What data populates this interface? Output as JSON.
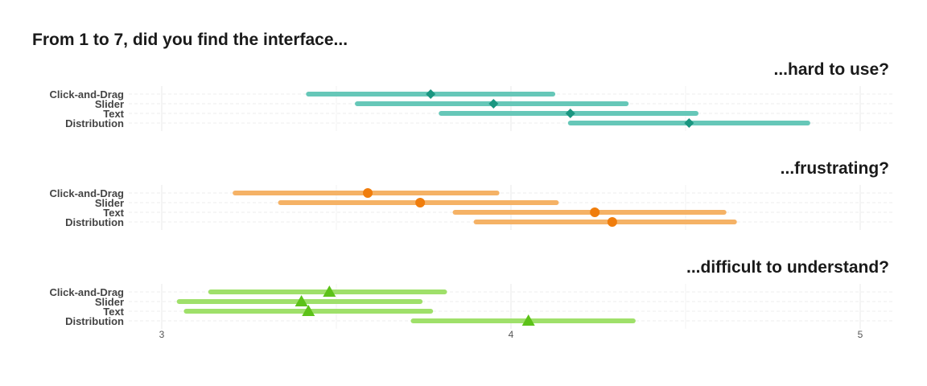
{
  "chart_data": {
    "type": "interval",
    "title": "From 1 to 7, did you find the interface...",
    "xlim": [
      2.8,
      5.1
    ],
    "x_ticks": [
      3,
      4,
      5
    ],
    "x_tick_labels": [
      "3",
      "4",
      "5"
    ],
    "categories": [
      "Click-and-Drag",
      "Slider",
      "Text",
      "Distribution"
    ],
    "grid": true,
    "panels": [
      {
        "title": "...hard to use?",
        "color": "#66c7b8",
        "marker_color": "#1a9680",
        "marker": "diamond",
        "series": [
          {
            "category": "Click-and-Drag",
            "low": 3.42,
            "high": 4.12,
            "mean": 3.77
          },
          {
            "category": "Slider",
            "low": 3.56,
            "high": 4.33,
            "mean": 3.95
          },
          {
            "category": "Text",
            "low": 3.8,
            "high": 4.53,
            "mean": 4.17
          },
          {
            "category": "Distribution",
            "low": 4.17,
            "high": 4.85,
            "mean": 4.51
          }
        ]
      },
      {
        "title": "...frustrating?",
        "color": "#f5b266",
        "marker_color": "#f07d0c",
        "marker": "circle",
        "series": [
          {
            "category": "Click-and-Drag",
            "low": 3.21,
            "high": 3.96,
            "mean": 3.59
          },
          {
            "category": "Slider",
            "low": 3.34,
            "high": 4.13,
            "mean": 3.74
          },
          {
            "category": "Text",
            "low": 3.84,
            "high": 4.61,
            "mean": 4.24
          },
          {
            "category": "Distribution",
            "low": 3.9,
            "high": 4.64,
            "mean": 4.29
          }
        ]
      },
      {
        "title": "...difficult to understand?",
        "color": "#9fe06a",
        "marker_color": "#5cc218",
        "marker": "triangle",
        "series": [
          {
            "category": "Click-and-Drag",
            "low": 3.14,
            "high": 3.81,
            "mean": 3.48
          },
          {
            "category": "Slider",
            "low": 3.05,
            "high": 3.74,
            "mean": 3.4
          },
          {
            "category": "Text",
            "low": 3.07,
            "high": 3.77,
            "mean": 3.42
          },
          {
            "category": "Distribution",
            "low": 3.72,
            "high": 4.35,
            "mean": 4.05
          }
        ]
      }
    ]
  }
}
